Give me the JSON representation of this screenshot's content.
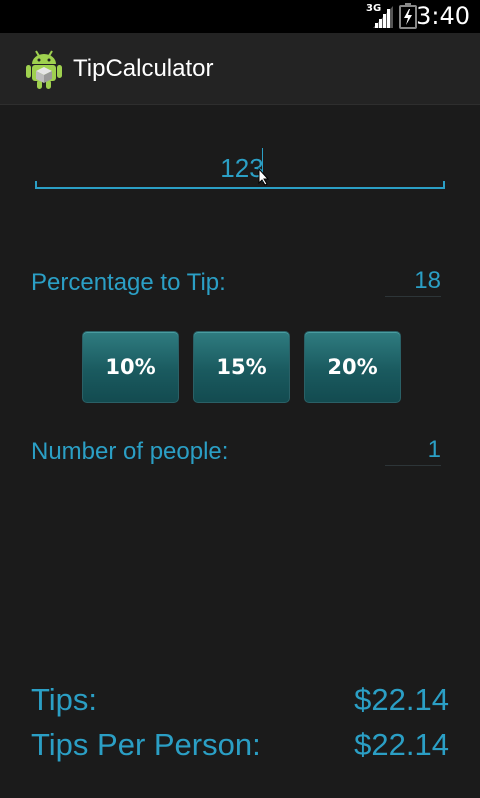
{
  "status_bar": {
    "network": "3G",
    "time": "3:40"
  },
  "action_bar": {
    "title": "TipCalculator",
    "icon": "android-robot-icon"
  },
  "bill": {
    "value": "123"
  },
  "tip_percentage": {
    "label": "Percentage to Tip:",
    "value": "18"
  },
  "presets": [
    {
      "label": "10%"
    },
    {
      "label": "15%"
    },
    {
      "label": "20%"
    }
  ],
  "people": {
    "label": "Number of people:",
    "value": "1"
  },
  "results": {
    "tips_label": "Tips:",
    "tips_value": "$22.14",
    "per_person_label": "Tips Per Person:",
    "per_person_value": "$22.14"
  },
  "colors": {
    "accent": "#2b9fc5",
    "background": "#1b1b1b",
    "button": "#1a5a5f"
  }
}
